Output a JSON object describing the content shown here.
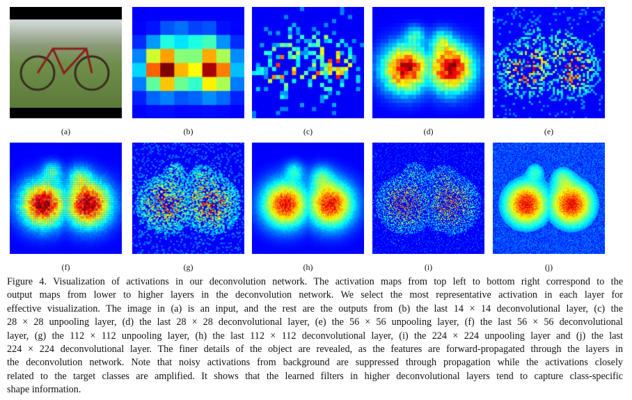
{
  "panels": [
    {
      "label": "(a)",
      "kind": "input-photo"
    },
    {
      "label": "(b)",
      "kind": "14x14 deconv"
    },
    {
      "label": "(c)",
      "kind": "28x28 unpool"
    },
    {
      "label": "(d)",
      "kind": "28x28 deconv"
    },
    {
      "label": "(e)",
      "kind": "56x56 unpool"
    },
    {
      "label": "(f)",
      "kind": "56x56 deconv"
    },
    {
      "label": "(g)",
      "kind": "112x112 unpool"
    },
    {
      "label": "(h)",
      "kind": "112x112 deconv"
    },
    {
      "label": "(i)",
      "kind": "224x224 unpool"
    },
    {
      "label": "(j)",
      "kind": "224x224 deconv"
    }
  ],
  "caption": {
    "lines": [
      "Figure 4. Visualization of activations in our deconvolution network. The activation maps from top left to bottom right correspond to the",
      "output maps from lower to higher layers in the deconvolution network. We select the most representative activation in each layer for",
      "effective visualization. The image in (a) is an input, and the rest are the outputs from (b) the last 14 × 14 deconvolutional layer, (c) the",
      "28 × 28 unpooling layer, (d) the last 28 × 28 deconvolutional layer, (e) the 56 × 56 unpooling layer, (f) the last 56 × 56 deconvolutional",
      "layer, (g) the 112 × 112 unpooling layer, (h) the last 112 × 112 deconvolutional layer, (i) the 224 × 224 unpooling layer and (j) the last",
      "224 × 224 deconvolutional layer. The finer details of the object are revealed, as the features are forward-propagated through the layers in",
      "the deconvolution network. Note that noisy activations from background are suppressed through propagation while the activations closely",
      "related to the target classes are amplified. It shows that the learned filters in higher deconvolutional layers tend to capture class-specific",
      "shape information."
    ]
  }
}
